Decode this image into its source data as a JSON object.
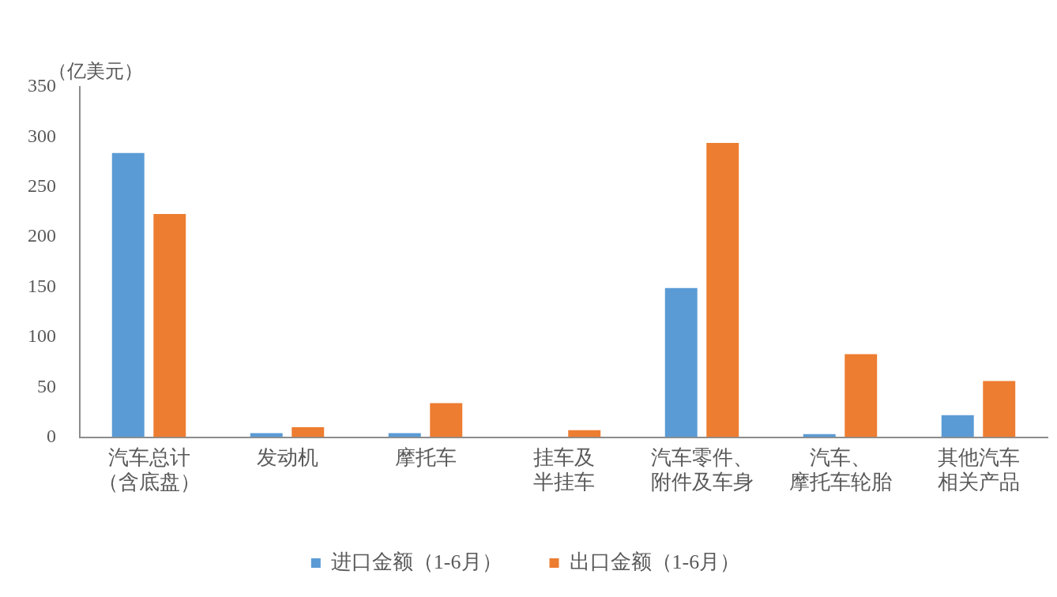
{
  "chart_data": {
    "type": "bar",
    "ylabel": "（亿美元）",
    "categories": [
      "汽车总计（含底盘）",
      "发动机",
      "摩托车",
      "挂车及半挂车",
      "汽车零件、附件及车身",
      "汽车、摩托车轮胎",
      "其他汽车相关产品"
    ],
    "series": [
      {
        "name": "进口金额（1-6月）",
        "color": "#5b9bd5",
        "values": [
          284,
          4,
          4,
          0,
          149,
          3,
          22
        ]
      },
      {
        "name": "出口金额（1-6月）",
        "color": "#ed7d31",
        "values": [
          223,
          10,
          34,
          7,
          294,
          83,
          56
        ]
      }
    ],
    "ylim": [
      0,
      350
    ],
    "yticks": [
      0,
      50,
      100,
      150,
      200,
      250,
      300,
      350
    ],
    "grid": false,
    "legend": "bottom"
  }
}
